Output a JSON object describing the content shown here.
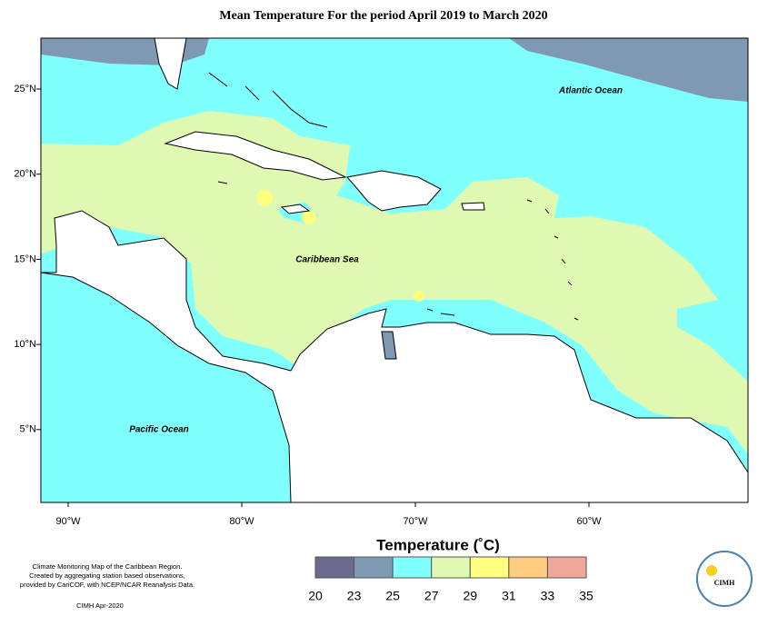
{
  "title": "Mean Temperature For the period April 2019 to March 2020",
  "map": {
    "ocean_labels": [
      "Atlantic Ocean",
      "Caribbean Sea",
      "Pacific Ocean"
    ],
    "lat_labels": [
      "25°N",
      "20°N",
      "15°N",
      "10°N",
      "5°N"
    ],
    "lon_labels": [
      "90°W",
      "80°W",
      "70°W",
      "60°W"
    ]
  },
  "legend": {
    "title": "Temperature (˚C)",
    "ticks": [
      20,
      23,
      25,
      27,
      29,
      31,
      33,
      35
    ],
    "colors": [
      "#6b6b8e",
      "#7f99b2",
      "#80ffff",
      "#dff9b3",
      "#ffff80",
      "#ffcc80",
      "#f0a898"
    ]
  },
  "footer": {
    "description": [
      "Climate Monitoring Map of the Caribbean Region.",
      "Created by aggregating station based observations,",
      "provided by CariCOF, with NCEP/NCAR Reanalysis Data."
    ],
    "credit": "CIMH Apr-2020"
  },
  "logo": {
    "text": "CIMH"
  }
}
